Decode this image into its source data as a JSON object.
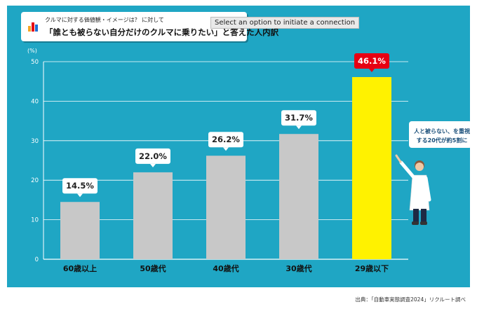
{
  "title": {
    "subtitle": "クルマに対する価値観・イメージは？ に対して",
    "main": "「誰とも被らない自分だけのクルマに乗りたい」と答えた人内訳"
  },
  "tooltip": "Select an option to initiate a connection",
  "unit_label": "(%)",
  "callout": "人と被らない、を重視する20代が約5割に",
  "footnote": "出典：「自動車実態調査2024」リクルート調べ",
  "colors": {
    "panel": "#1fa6c4",
    "bar": "#c8c8c8",
    "highlight_bar": "#fff200",
    "highlight_label_bg": "#e60012",
    "grid": "#ffffff"
  },
  "chart_data": {
    "type": "bar",
    "title": "「誰とも被らない自分だけのクルマに乗りたい」と答えた人内訳",
    "categories": [
      "60歳以上",
      "50歳代",
      "40歳代",
      "30歳代",
      "29歳以下"
    ],
    "values": [
      14.5,
      22.0,
      26.2,
      31.7,
      46.1
    ],
    "value_labels": [
      "14.5%",
      "22.0%",
      "26.2%",
      "31.7%",
      "46.1%"
    ],
    "highlight_index": 4,
    "ylabel": "(%)",
    "xlabel": "",
    "ylim": [
      0,
      50
    ],
    "yticks": [
      0,
      10,
      20,
      30,
      40,
      50
    ],
    "grid": true
  }
}
